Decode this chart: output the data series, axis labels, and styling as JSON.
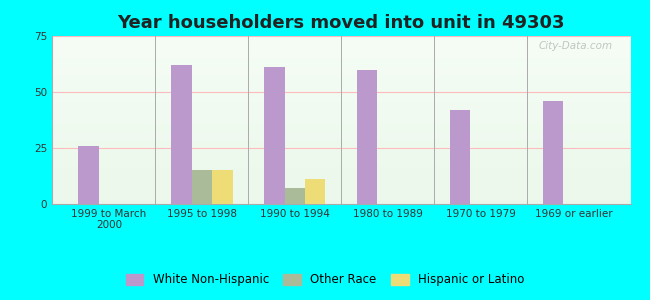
{
  "title": "Year householders moved into unit in 49303",
  "categories": [
    "1999 to March\n2000",
    "1995 to 1998",
    "1990 to 1994",
    "1980 to 1989",
    "1970 to 1979",
    "1969 or earlier"
  ],
  "white_non_hispanic": [
    26,
    62,
    61,
    60,
    42,
    46
  ],
  "other_race": [
    0,
    15,
    7,
    0,
    0,
    0
  ],
  "hispanic_or_latino": [
    0,
    15,
    11,
    0,
    0,
    0
  ],
  "white_color": "#bb99cc",
  "other_color": "#aabb99",
  "hispanic_color": "#eedd77",
  "ylim": [
    0,
    75
  ],
  "yticks": [
    0,
    25,
    50,
    75
  ],
  "bar_width": 0.22,
  "background_color": "#00FFFF",
  "watermark": "City-Data.com",
  "title_fontsize": 13,
  "tick_fontsize": 7.5,
  "legend_fontsize": 8.5,
  "grid_color": "#ffbbbb",
  "separator_color": "#aaaaaa"
}
